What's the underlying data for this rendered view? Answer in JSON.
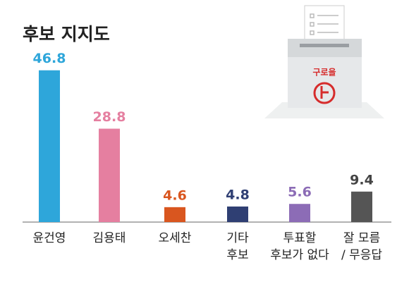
{
  "chart_data": {
    "type": "bar",
    "title": "후보 지지도",
    "categories": [
      "윤건영",
      "김용태",
      "오세찬",
      "기타\n후보",
      "투표할\n후보가 없다",
      "잘 모름\n/ 무응답"
    ],
    "values": [
      46.8,
      28.8,
      4.6,
      4.8,
      5.6,
      9.4
    ],
    "colors": [
      "#2ea6da",
      "#e57fa0",
      "#d9561f",
      "#2f3f73",
      "#8c6cb6",
      "#555555"
    ],
    "label_colors": [
      "#2ea6da",
      "#e57fa0",
      "#d9561f",
      "#2f3f73",
      "#8c6cb6",
      "#444444"
    ],
    "illustration_label": "구로을"
  }
}
